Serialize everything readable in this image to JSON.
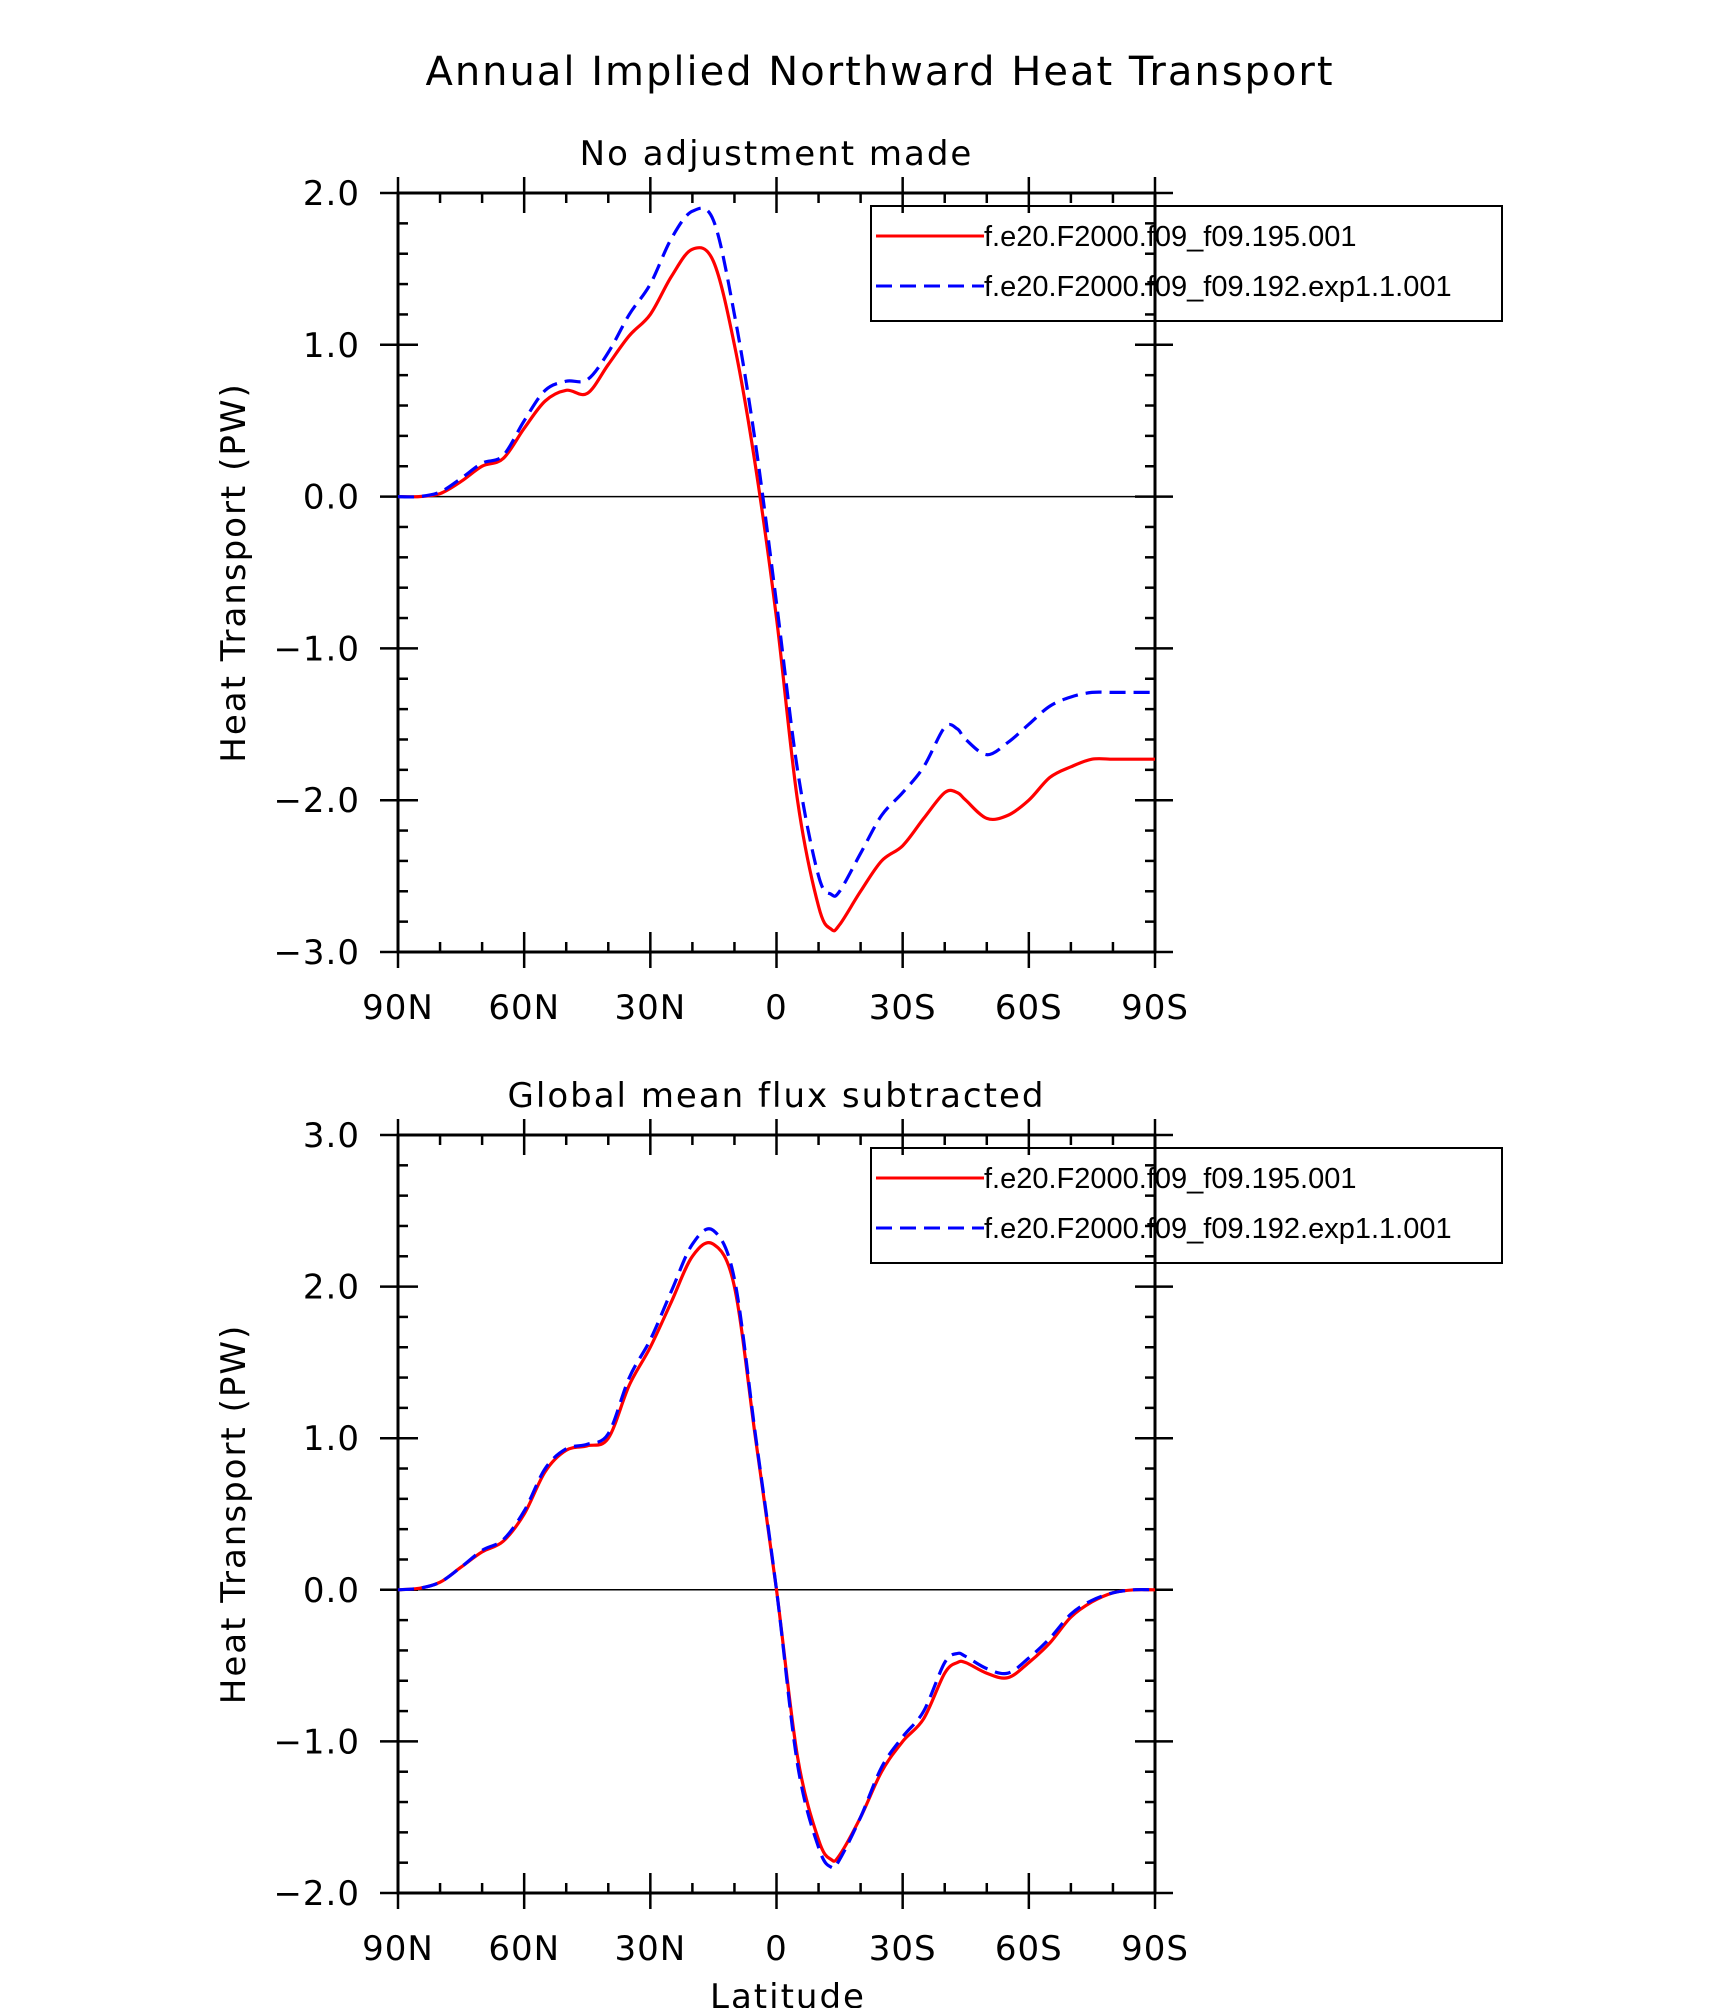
{
  "figure": {
    "title": "Annual Implied Northward Heat Transport",
    "xlabel": "Latitude"
  },
  "colors": {
    "series_a": "#ff0000",
    "series_b": "#0000ff"
  },
  "chart_data": [
    {
      "type": "line",
      "title": "No adjustment made",
      "xlabel": "",
      "ylabel": "Heat Transport (PW)",
      "xlim": [
        90,
        -90
      ],
      "ylim": [
        -3,
        2
      ],
      "xticks": [
        90,
        60,
        30,
        0,
        -30,
        -60,
        -90
      ],
      "xtick_labels": [
        "90N",
        "60N",
        "30N",
        "0",
        "30S",
        "60S",
        "90S"
      ],
      "yticks": [
        -3,
        -2,
        -1,
        0,
        1,
        2
      ],
      "ytick_labels": [
        "−3.0",
        "−2.0",
        "−1.0",
        "0.0",
        "1.0",
        "2.0"
      ],
      "legend": "top-right",
      "x": [
        90,
        85,
        80,
        75,
        70,
        65,
        60,
        55,
        50,
        45,
        40,
        35,
        30,
        25,
        20,
        15,
        10,
        5,
        0,
        -5,
        -10,
        -13,
        -15,
        -20,
        -25,
        -30,
        -35,
        -40,
        -43,
        -45,
        -50,
        -55,
        -60,
        -65,
        -70,
        -75,
        -80,
        -85,
        -90
      ],
      "series": [
        {
          "name": "f.e20.F2000.f09_f09.195.001",
          "style": "solid",
          "values": [
            0.0,
            0.0,
            0.02,
            0.1,
            0.2,
            0.25,
            0.45,
            0.63,
            0.7,
            0.68,
            0.87,
            1.06,
            1.2,
            1.45,
            1.63,
            1.55,
            1.0,
            0.2,
            -0.8,
            -2.0,
            -2.7,
            -2.85,
            -2.82,
            -2.6,
            -2.4,
            -2.3,
            -2.12,
            -1.95,
            -1.95,
            -2.0,
            -2.12,
            -2.1,
            -2.0,
            -1.85,
            -1.78,
            -1.73,
            -1.73,
            -1.73,
            -1.73
          ]
        },
        {
          "name": "f.e20.F2000.f09_f09.192.exp1.1.001",
          "style": "dashed",
          "values": [
            0.0,
            0.0,
            0.03,
            0.12,
            0.22,
            0.27,
            0.5,
            0.7,
            0.76,
            0.77,
            0.95,
            1.2,
            1.4,
            1.7,
            1.88,
            1.82,
            1.2,
            0.35,
            -0.7,
            -1.8,
            -2.5,
            -2.62,
            -2.6,
            -2.35,
            -2.1,
            -1.95,
            -1.78,
            -1.52,
            -1.53,
            -1.6,
            -1.7,
            -1.62,
            -1.5,
            -1.38,
            -1.32,
            -1.29,
            -1.29,
            -1.29,
            -1.29
          ]
        }
      ]
    },
    {
      "type": "line",
      "title": "Global mean flux subtracted",
      "xlabel": "Latitude",
      "ylabel": "Heat Transport (PW)",
      "xlim": [
        90,
        -90
      ],
      "ylim": [
        -2,
        3
      ],
      "xticks": [
        90,
        60,
        30,
        0,
        -30,
        -60,
        -90
      ],
      "xtick_labels": [
        "90N",
        "60N",
        "30N",
        "0",
        "30S",
        "60S",
        "90S"
      ],
      "yticks": [
        -2,
        -1,
        0,
        1,
        2,
        3
      ],
      "ytick_labels": [
        "−2.0",
        "−1.0",
        "0.0",
        "1.0",
        "2.0",
        "3.0"
      ],
      "legend": "top-right",
      "x": [
        90,
        85,
        80,
        75,
        70,
        65,
        60,
        55,
        50,
        45,
        40,
        35,
        30,
        25,
        20,
        15,
        10,
        5,
        0,
        -5,
        -10,
        -13,
        -15,
        -20,
        -25,
        -30,
        -35,
        -40,
        -43,
        -45,
        -50,
        -55,
        -60,
        -65,
        -70,
        -75,
        -80,
        -85,
        -90
      ],
      "series": [
        {
          "name": "f.e20.F2000.f09_f09.195.001",
          "style": "solid",
          "values": [
            0.0,
            0.01,
            0.05,
            0.15,
            0.25,
            0.32,
            0.5,
            0.78,
            0.92,
            0.95,
            1.0,
            1.35,
            1.6,
            1.9,
            2.2,
            2.28,
            2.0,
            1.0,
            0.0,
            -1.1,
            -1.65,
            -1.78,
            -1.75,
            -1.5,
            -1.2,
            -1.0,
            -0.85,
            -0.55,
            -0.48,
            -0.48,
            -0.55,
            -0.58,
            -0.48,
            -0.35,
            -0.18,
            -0.08,
            -0.02,
            0.0,
            0.0
          ]
        },
        {
          "name": "f.e20.F2000.f09_f09.192.exp1.1.001",
          "style": "dashed",
          "values": [
            0.0,
            0.01,
            0.05,
            0.15,
            0.26,
            0.33,
            0.52,
            0.8,
            0.93,
            0.96,
            1.03,
            1.4,
            1.65,
            1.97,
            2.28,
            2.37,
            2.05,
            1.02,
            0.0,
            -1.15,
            -1.7,
            -1.83,
            -1.78,
            -1.5,
            -1.17,
            -0.97,
            -0.8,
            -0.48,
            -0.42,
            -0.44,
            -0.52,
            -0.55,
            -0.45,
            -0.32,
            -0.16,
            -0.07,
            -0.02,
            0.0,
            0.0
          ]
        }
      ]
    }
  ]
}
